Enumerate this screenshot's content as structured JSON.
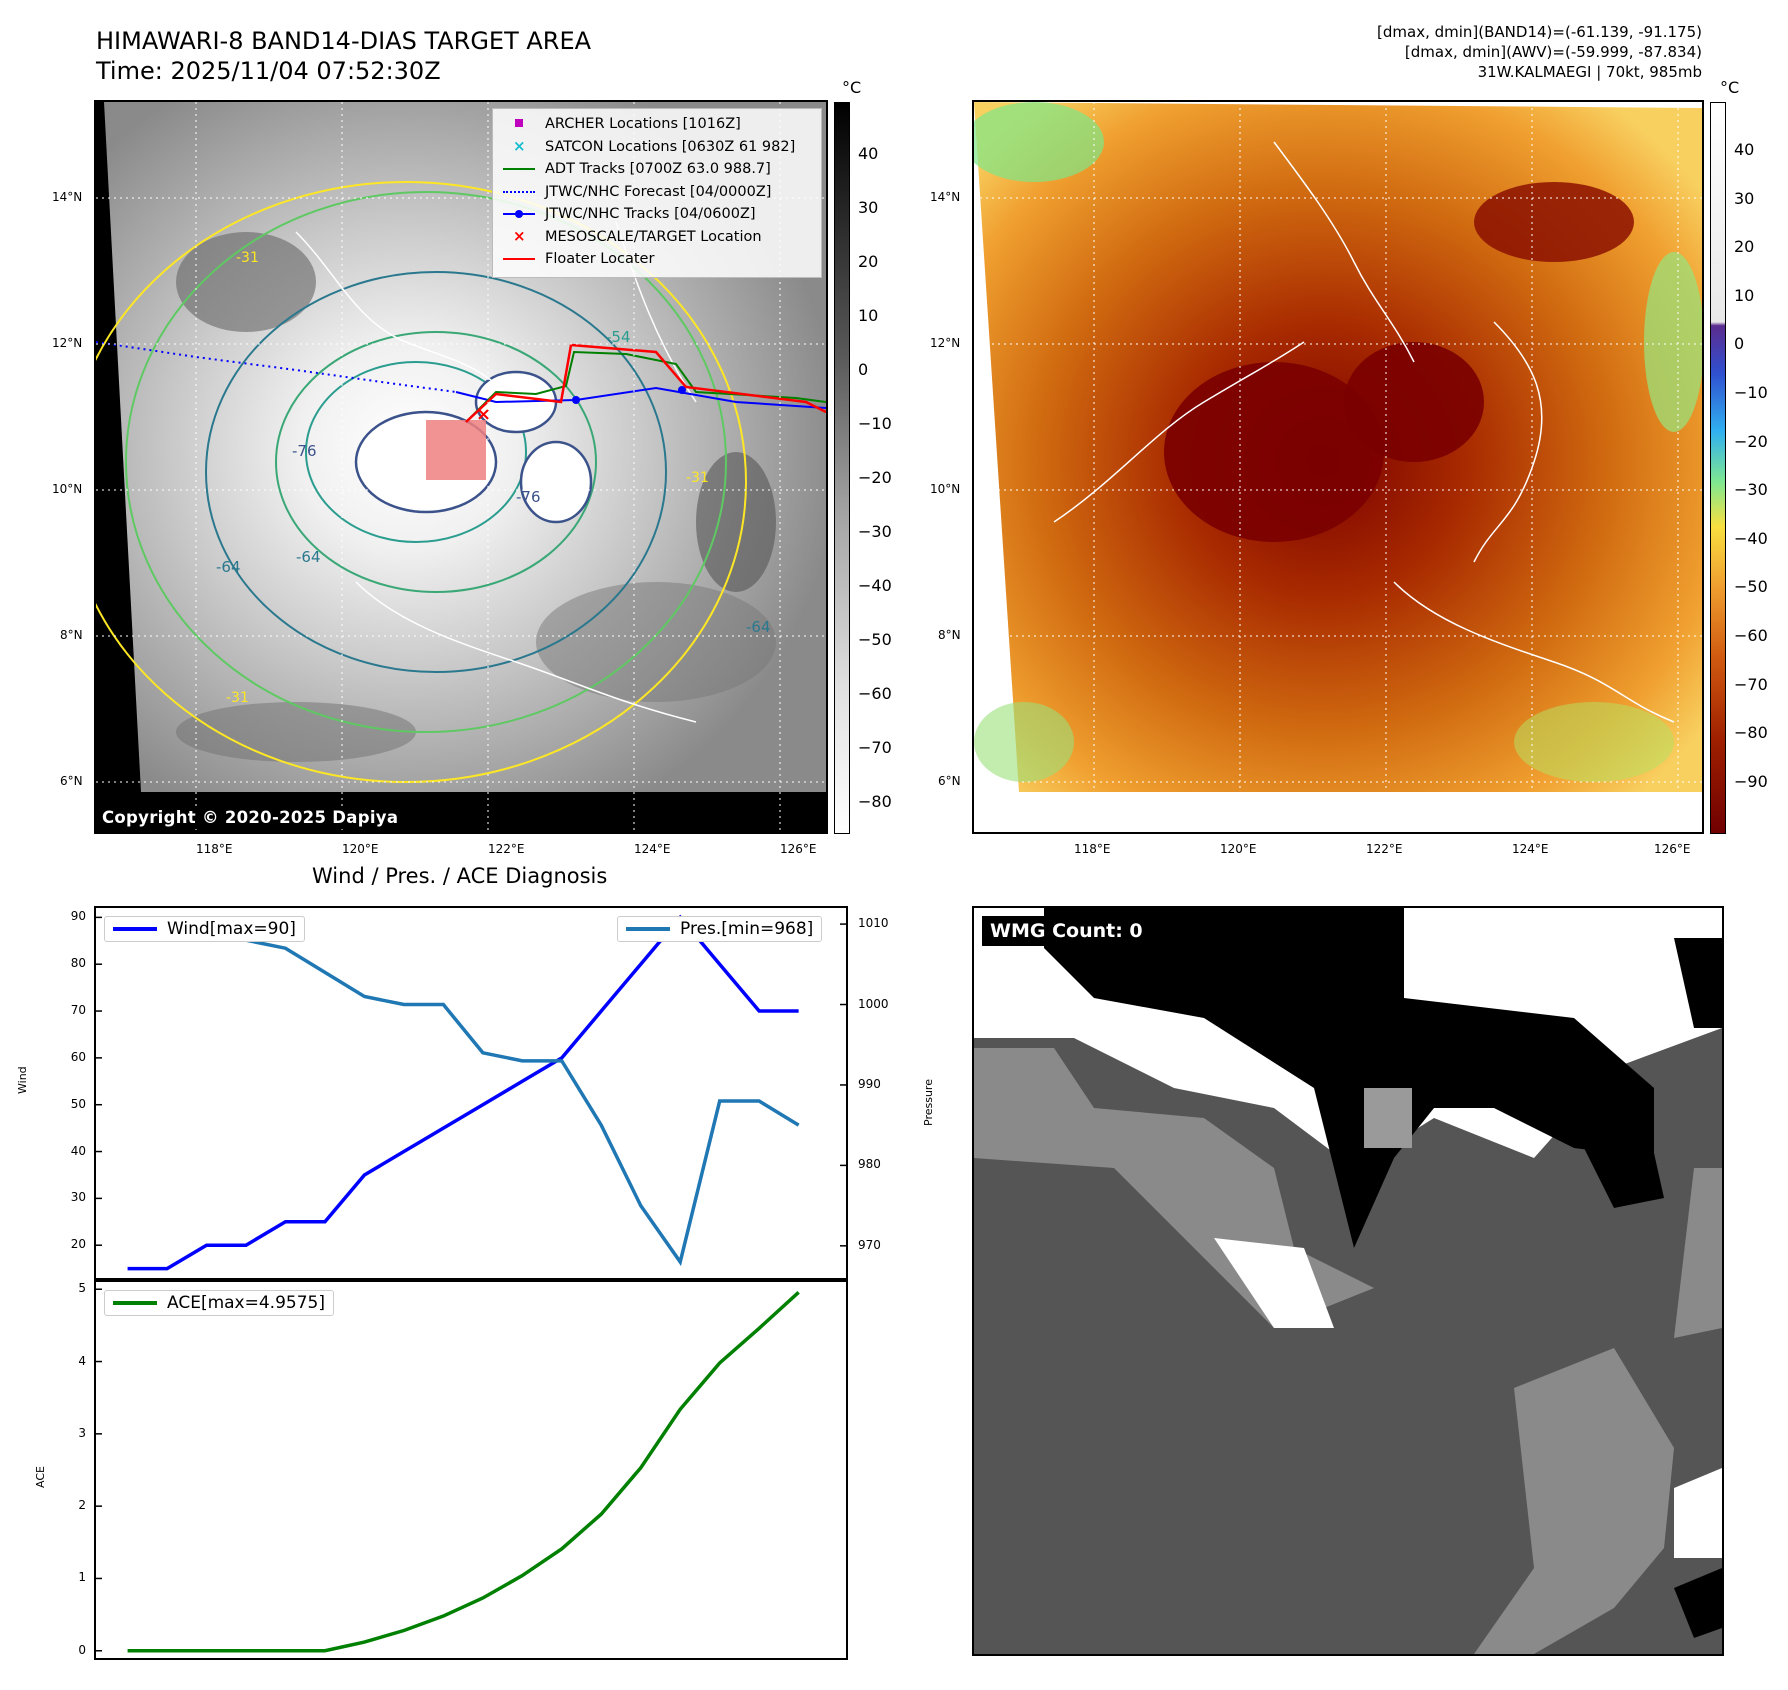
{
  "title": {
    "line1": "HIMAWARI-8 BAND14-DIAS TARGET AREA",
    "line2": "Time: 2025/11/04 07:52:30Z"
  },
  "info": {
    "line1": "[dmax, dmin](BAND14)=(-61.139, -91.175)",
    "line2": "[dmax, dmin](AWV)=(-59.999, -87.834)",
    "line3": "31W.KALMAEGI | 70kt, 985mb"
  },
  "map": {
    "lat_labels": [
      "14°N",
      "12°N",
      "10°N",
      "8°N",
      "6°N"
    ],
    "lon_labels": [
      "118°E",
      "120°E",
      "122°E",
      "124°E",
      "126°E"
    ],
    "copyright": "Copyright © 2020-2025 Dapiya",
    "contour_labels": [
      "-31",
      "-64",
      "-76",
      "-54",
      "-64",
      "-76",
      "-64",
      "-31",
      "-31"
    ],
    "legend": [
      {
        "label": "ARCHER Locations [1016Z]",
        "symbol": "square",
        "color": "#bf00bf"
      },
      {
        "label": "SATCON Locations [0630Z 61 982]",
        "symbol": "x",
        "color": "#17becf"
      },
      {
        "label": "ADT Tracks [0700Z 63.0 988.7]",
        "symbol": "line",
        "color": "#008000"
      },
      {
        "label": "JTWC/NHC Forecast [04/0000Z]",
        "symbol": "dotted",
        "color": "#0000ff"
      },
      {
        "label": "JTWC/NHC Tracks [04/0600Z]",
        "symbol": "line-dot",
        "color": "#0000ff"
      },
      {
        "label": "MESOSCALE/TARGET Location",
        "symbol": "x",
        "color": "#ff0000"
      },
      {
        "label": "Floater Locater",
        "symbol": "line",
        "color": "#ff0000"
      }
    ]
  },
  "colorbar_left": {
    "unit": "°C",
    "ticks": [
      "40",
      "30",
      "20",
      "10",
      "0",
      "−10",
      "−20",
      "−30",
      "−40",
      "−50",
      "−60",
      "−70",
      "−80"
    ]
  },
  "colorbar_right": {
    "unit": "°C",
    "ticks": [
      "40",
      "30",
      "20",
      "10",
      "0",
      "−10",
      "−20",
      "−30",
      "−40",
      "−50",
      "−60",
      "−70",
      "−80",
      "−90"
    ]
  },
  "diagnosis": {
    "title": "Wind / Pres. / ACE Diagnosis",
    "wind_axis_label": "Wind",
    "pressure_axis_label": "Pressure",
    "ace_axis_label": "ACE",
    "wind_legend": "Wind[max=90]",
    "pressure_legend": "Pres.[min=968]",
    "ace_legend": "ACE[max=4.9575]",
    "wind_ticks": [
      "90",
      "80",
      "70",
      "60",
      "50",
      "40",
      "30",
      "20"
    ],
    "pressure_ticks": [
      "1010",
      "1000",
      "990",
      "980",
      "970"
    ],
    "ace_ticks": [
      "5",
      "4",
      "3",
      "2",
      "1",
      "0"
    ]
  },
  "wmg": {
    "label": "WMG Count: 0"
  },
  "chart_data": [
    {
      "type": "line",
      "title": "Wind / Pres. / ACE Diagnosis",
      "x": [
        0,
        1,
        2,
        3,
        4,
        5,
        6,
        7,
        8,
        9,
        10,
        11,
        12,
        13,
        14,
        15,
        16,
        17
      ],
      "series": [
        {
          "name": "Wind[max=90]",
          "axis": "left",
          "color": "#0000ff",
          "values": [
            15,
            15,
            20,
            20,
            25,
            25,
            35,
            40,
            45,
            50,
            55,
            60,
            70,
            80,
            90,
            80,
            70,
            70
          ]
        },
        {
          "name": "Pres.[min=968]",
          "axis": "right",
          "color": "#1f77b4",
          "values": [
            1010,
            1008,
            1008,
            1008,
            1007,
            1004,
            1001,
            1000,
            1000,
            994,
            993,
            993,
            985,
            975,
            968,
            988,
            988,
            985
          ]
        }
      ],
      "ylabel": "Wind",
      "ylim": [
        13,
        92
      ],
      "y2label": "Pressure",
      "y2lim": [
        966,
        1012
      ]
    },
    {
      "type": "line",
      "x": [
        0,
        1,
        2,
        3,
        4,
        5,
        6,
        7,
        8,
        9,
        10,
        11,
        12,
        13,
        14,
        15,
        16,
        17
      ],
      "series": [
        {
          "name": "ACE[max=4.9575]",
          "color": "#008000",
          "values": [
            0,
            0,
            0,
            0,
            0,
            0,
            0.12,
            0.28,
            0.48,
            0.73,
            1.04,
            1.41,
            1.89,
            2.53,
            3.34,
            3.98,
            4.46,
            4.9575
          ]
        }
      ],
      "ylabel": "ACE",
      "ylim": [
        -0.1,
        5.1
      ]
    }
  ]
}
